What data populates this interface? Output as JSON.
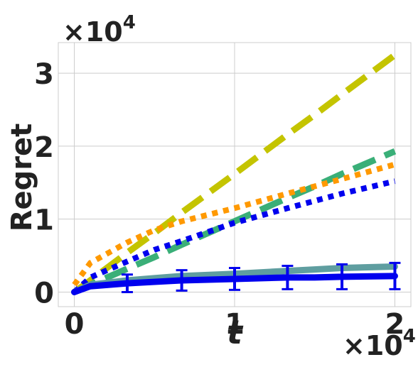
{
  "chart_data": {
    "type": "line",
    "x_label": "t",
    "y_label": "Regret",
    "x_offset": {
      "base": "×10",
      "exponent": "4"
    },
    "y_offset": {
      "base": "×10",
      "exponent": "4"
    },
    "x": [
      0,
      0.1,
      0.33,
      0.5,
      0.67,
      1,
      1.33,
      1.5,
      1.67,
      2
    ],
    "xlim": [
      -0.1,
      2.1
    ],
    "ylim": [
      -0.2,
      3.42
    ],
    "xticks": [
      0,
      1,
      2
    ],
    "yticks": [
      0,
      1,
      2,
      3
    ],
    "grid": true,
    "series": [
      {
        "color": "#c4c400",
        "dash": "dashed",
        "width": 9,
        "values": [
          0,
          0.16,
          0.54,
          0.81,
          1.09,
          1.62,
          2.16,
          2.43,
          2.71,
          3.25
        ]
      },
      {
        "color": "#3aaf78",
        "dash": "dashed",
        "width": 9,
        "values": [
          0,
          0.1,
          0.32,
          0.48,
          0.65,
          0.97,
          1.29,
          1.45,
          1.62,
          1.93
        ]
      },
      {
        "color": "#ff9900",
        "dash": "dotted",
        "width": 8,
        "values": [
          0.1,
          0.4,
          0.68,
          0.85,
          0.97,
          1.15,
          1.35,
          1.45,
          1.55,
          1.75
        ]
      },
      {
        "color": "#0000ee",
        "dash": "dotted",
        "width": 8,
        "values": [
          0,
          0.2,
          0.42,
          0.58,
          0.7,
          0.95,
          1.15,
          1.25,
          1.35,
          1.52
        ]
      },
      {
        "color": "#5f9ea0",
        "dash": "solid",
        "width": 9,
        "values": [
          0,
          0.1,
          0.16,
          0.19,
          0.22,
          0.25,
          0.29,
          0.31,
          0.33,
          0.35
        ]
      },
      {
        "color": "#0000ee",
        "dash": "solid",
        "width": 9,
        "values": [
          0,
          0.08,
          0.12,
          0.14,
          0.16,
          0.18,
          0.2,
          0.2,
          0.21,
          0.22
        ],
        "errors": [
          null,
          null,
          0.12,
          null,
          0.14,
          0.15,
          0.16,
          null,
          0.17,
          0.18
        ]
      }
    ]
  }
}
